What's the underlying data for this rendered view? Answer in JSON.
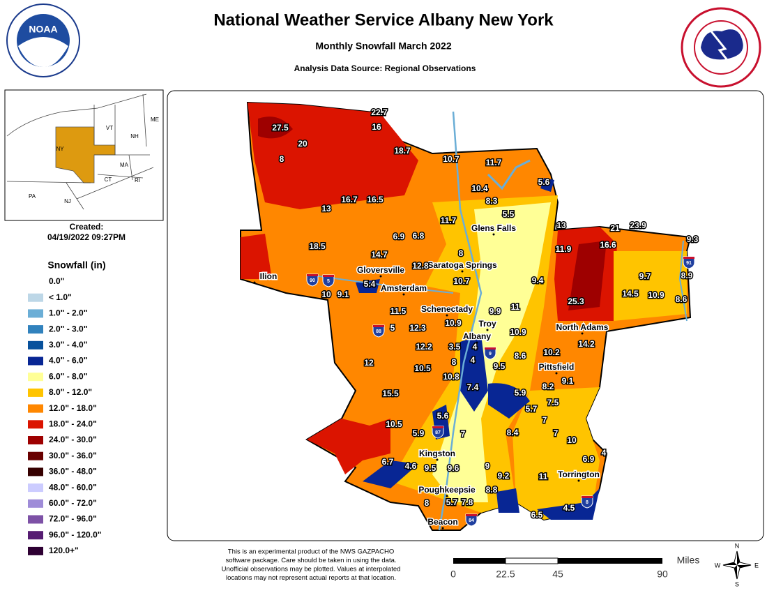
{
  "header": {
    "title": "National Weather Service Albany New York",
    "subtitle": "Monthly Snowfall March 2022",
    "source": "Analysis Data Source: Regional Observations",
    "logo_left": "NOAA"
  },
  "inset": {
    "states": [
      "ME",
      "VT",
      "NH",
      "NY",
      "MA",
      "CT",
      "RI",
      "PA",
      "NJ"
    ],
    "created_label": "Created:",
    "created_date": "04/19/2022 09:27PM"
  },
  "legend": {
    "title": "Snowfall (in)",
    "items": [
      {
        "label": "0.0\"",
        "color": "#ffffff"
      },
      {
        "label": "< 1.0\"",
        "color": "#bdd7e7"
      },
      {
        "label": "1.0\" - 2.0\"",
        "color": "#6baed6"
      },
      {
        "label": "2.0\" - 3.0\"",
        "color": "#3182bd"
      },
      {
        "label": "3.0\" - 4.0\"",
        "color": "#08519c"
      },
      {
        "label": "4.0\" - 6.0\"",
        "color": "#082694"
      },
      {
        "label": "6.0\" - 8.0\"",
        "color": "#ffff96"
      },
      {
        "label": "8.0\" - 12.0\"",
        "color": "#ffc400"
      },
      {
        "label": "12.0\" - 18.0\"",
        "color": "#ff8700"
      },
      {
        "label": "18.0\" - 24.0\"",
        "color": "#db1400"
      },
      {
        "label": "24.0\" - 30.0\"",
        "color": "#9e0000"
      },
      {
        "label": "30.0\" - 36.0\"",
        "color": "#690000"
      },
      {
        "label": "36.0\" - 48.0\"",
        "color": "#360000"
      },
      {
        "label": "48.0\" - 60.0\"",
        "color": "#ccccff"
      },
      {
        "label": "60.0\" - 72.0\"",
        "color": "#9f8cd8"
      },
      {
        "label": "72.0\" - 96.0\"",
        "color": "#7d51a6"
      },
      {
        "label": "96.0\" - 120.0\"",
        "color": "#561c72"
      },
      {
        "label": "120.0+\"",
        "color": "#2e0033"
      }
    ]
  },
  "observations": [
    "27.5",
    "22.7",
    "16",
    "20",
    "8",
    "18.7",
    "10.7",
    "11.7",
    "10.4",
    "5.6",
    "8.3",
    "5.5",
    "13",
    "16.7",
    "16.5",
    "11.7",
    "6.9",
    "6.8",
    "18.5",
    "14.7",
    "8",
    "12.8",
    "10.7",
    "5.4",
    "10",
    "9.1",
    "11.5",
    "9.9",
    "11",
    "5",
    "12.3",
    "10.9",
    "10.9",
    "12.2",
    "3.5",
    "4",
    "12",
    "10.5",
    "8",
    "4",
    "9.5",
    "8.6",
    "10.8",
    "7.4",
    "15.5",
    "5.9",
    "10.5",
    "5.6",
    "5.9",
    "7",
    "6.7",
    "4.6",
    "9.5",
    "9.6",
    "9",
    "9.2",
    "8.8",
    "8",
    "5.7",
    "7.8",
    "13",
    "21",
    "23.9",
    "16.6",
    "11.9",
    "9.3",
    "9.7",
    "8.9",
    "9.4",
    "25.3",
    "14.5",
    "10.9",
    "8.6",
    "14.2",
    "10.2",
    "9.1",
    "8.2",
    "7.5",
    "5.7",
    "7",
    "8.4",
    "7",
    "10",
    "6.9",
    "4",
    "11",
    "4.5",
    "6.5"
  ],
  "cities": [
    "Ilion",
    "Gloversville",
    "Saratoga Springs",
    "Amsterdam",
    "Glens Falls",
    "Schenectady",
    "Troy",
    "Albany",
    "North Adams",
    "Pittsfield",
    "Kingston",
    "Torrington",
    "Poughkeepsie",
    "Beacon"
  ],
  "highways": [
    "90",
    "5",
    "88",
    "87",
    "9",
    "91",
    "84",
    "8"
  ],
  "footer": {
    "disclaimer": [
      "This is an experimental product of the NWS GAZPACHO",
      "software package. Care should be taken in using the data.",
      "Unofficial observations may be plotted. Values at interpolated",
      "locations may not represent actual reports at that location."
    ]
  },
  "scale": {
    "unit": "Miles",
    "ticks": [
      "0",
      "22.5",
      "45",
      "90"
    ]
  },
  "compass": [
    "N",
    "S",
    "E",
    "W"
  ]
}
